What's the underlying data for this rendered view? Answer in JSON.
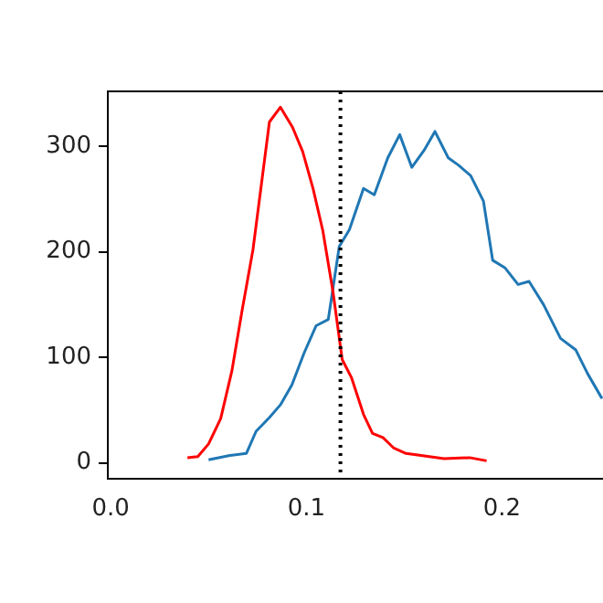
{
  "chart_data": {
    "type": "line",
    "series": [
      {
        "color": "#ff0000",
        "x": [
          0.0392,
          0.0445,
          0.05,
          0.0562,
          0.0619,
          0.0671,
          0.0727,
          0.0811,
          0.0867,
          0.0929,
          0.0981,
          0.1034,
          0.1084,
          0.1136,
          0.1183,
          0.123,
          0.1292,
          0.1338,
          0.1391,
          0.1447,
          0.1509,
          0.1586,
          0.1704,
          0.1834,
          0.1921
        ],
        "values": [
          5,
          6,
          18,
          42,
          87,
          144,
          202,
          323,
          337,
          318,
          295,
          260,
          220,
          162,
          98,
          81,
          46,
          28,
          24,
          14,
          9,
          7,
          4,
          5,
          2
        ]
      },
      {
        "color": "#1f77b4",
        "x": [
          0.05,
          0.0609,
          0.0693,
          0.0743,
          0.0811,
          0.0867,
          0.0926,
          0.0988,
          0.105,
          0.1112,
          0.1168,
          0.122,
          0.1292,
          0.1347,
          0.1416,
          0.1477,
          0.1539,
          0.1601,
          0.1657,
          0.1725,
          0.1778,
          0.184,
          0.1905,
          0.1952,
          0.2014,
          0.2082,
          0.2138,
          0.2212,
          0.2299,
          0.2377,
          0.2439,
          0.2511
        ],
        "values": [
          3,
          7,
          9,
          30,
          43,
          55,
          74,
          104,
          130,
          136,
          205,
          221,
          260,
          254,
          289,
          311,
          280,
          296,
          314,
          289,
          282,
          272,
          248,
          192,
          185,
          169,
          172,
          150,
          118,
          107,
          84,
          61
        ]
      }
    ],
    "xlim": [
      -0.0015,
      0.2516
    ],
    "ylim": [
      -15,
      352
    ],
    "xticks": [
      {
        "value": 0,
        "label": "0.0"
      },
      {
        "value": 0.1,
        "label": "0.1"
      },
      {
        "value": 0.2,
        "label": "0.2"
      }
    ],
    "yticks": [
      0,
      100,
      200,
      300
    ],
    "ref_lines": [
      {
        "axis": "x",
        "value": 0.1174,
        "color": "#000000",
        "line_style": "dotted"
      }
    ],
    "grid": false,
    "legend": false,
    "marker": "none",
    "line_style": "solid"
  }
}
